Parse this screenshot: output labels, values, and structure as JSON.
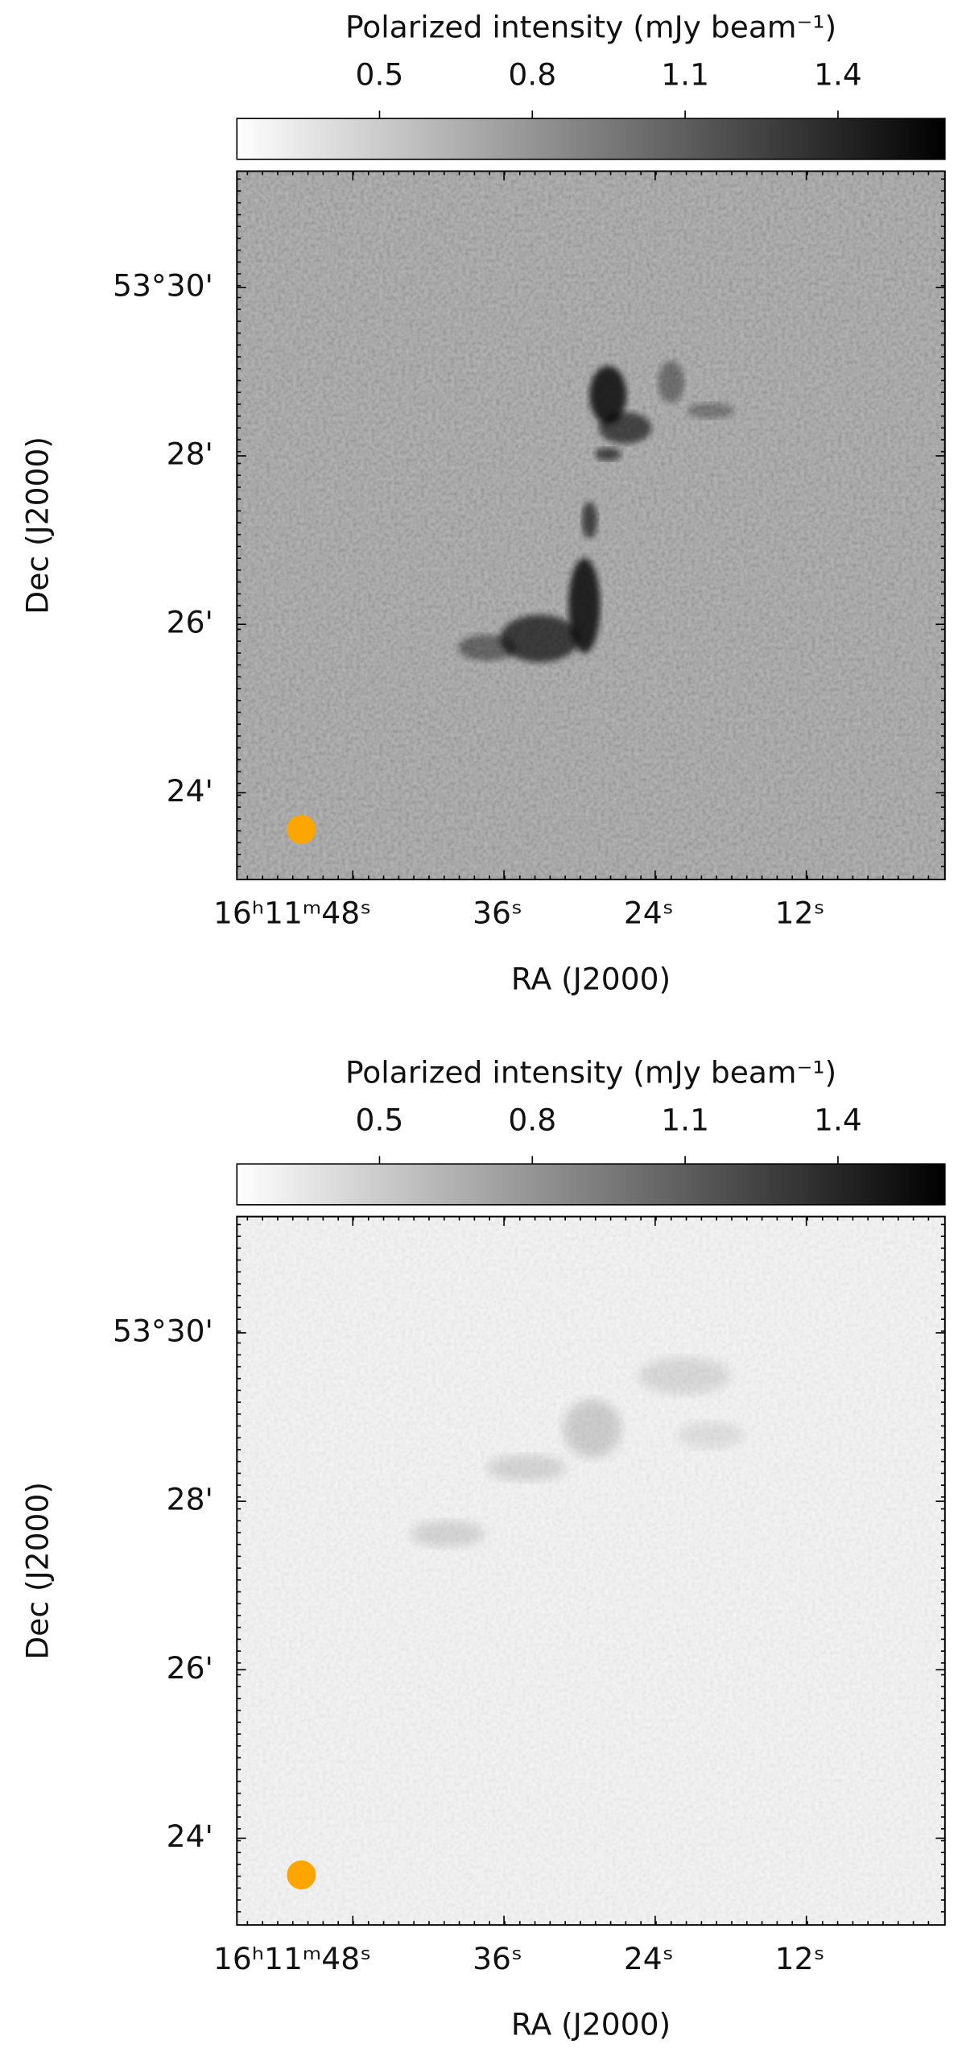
{
  "chart_data": [
    {
      "type": "image",
      "cmap": "Greys",
      "colorbar": {
        "label": "Polarized intensity (mJy beam⁻¹)",
        "lim": [
          0.22,
          1.61
        ],
        "ticks": [
          0.5,
          0.8,
          1.1,
          1.4
        ]
      },
      "xlabel": "RA (J2000)",
      "ylabel": "Dec (J2000)",
      "xlim": [
        57.2,
        1.0
      ],
      "ylim": [
        22.97,
        31.38
      ],
      "xticks": [
        {
          "value": 48,
          "label": "16ʰ11ᵐ48ˢ"
        },
        {
          "value": 36,
          "label": "36ˢ"
        },
        {
          "value": 24,
          "label": "24ˢ"
        },
        {
          "value": 12,
          "label": "12ˢ"
        }
      ],
      "yticks": [
        {
          "value": 30,
          "label": "53°30'"
        },
        {
          "value": 28,
          "label": "28'"
        },
        {
          "value": 26,
          "label": "26'"
        },
        {
          "value": 24,
          "label": "24'"
        }
      ]
    },
    {
      "type": "image",
      "cmap": "Greys",
      "colorbar": {
        "label": "Polarized intensity (mJy beam⁻¹)",
        "lim": [
          0.22,
          1.61
        ],
        "ticks": [
          0.5,
          0.8,
          1.1,
          1.4
        ]
      },
      "xlabel": "RA (J2000)",
      "ylabel": "Dec (J2000)",
      "xlim": [
        57.2,
        1.0
      ],
      "ylim": [
        22.97,
        31.38
      ],
      "xticks": [
        {
          "value": 48,
          "label": "16ʰ11ᵐ48ˢ"
        },
        {
          "value": 36,
          "label": "36ˢ"
        },
        {
          "value": 24,
          "label": "24ˢ"
        },
        {
          "value": 12,
          "label": "12ˢ"
        }
      ],
      "yticks": [
        {
          "value": 30,
          "label": "53°30'"
        },
        {
          "value": 28,
          "label": "28'"
        },
        {
          "value": 26,
          "label": "26'"
        },
        {
          "value": 24,
          "label": "24'"
        }
      ]
    }
  ]
}
